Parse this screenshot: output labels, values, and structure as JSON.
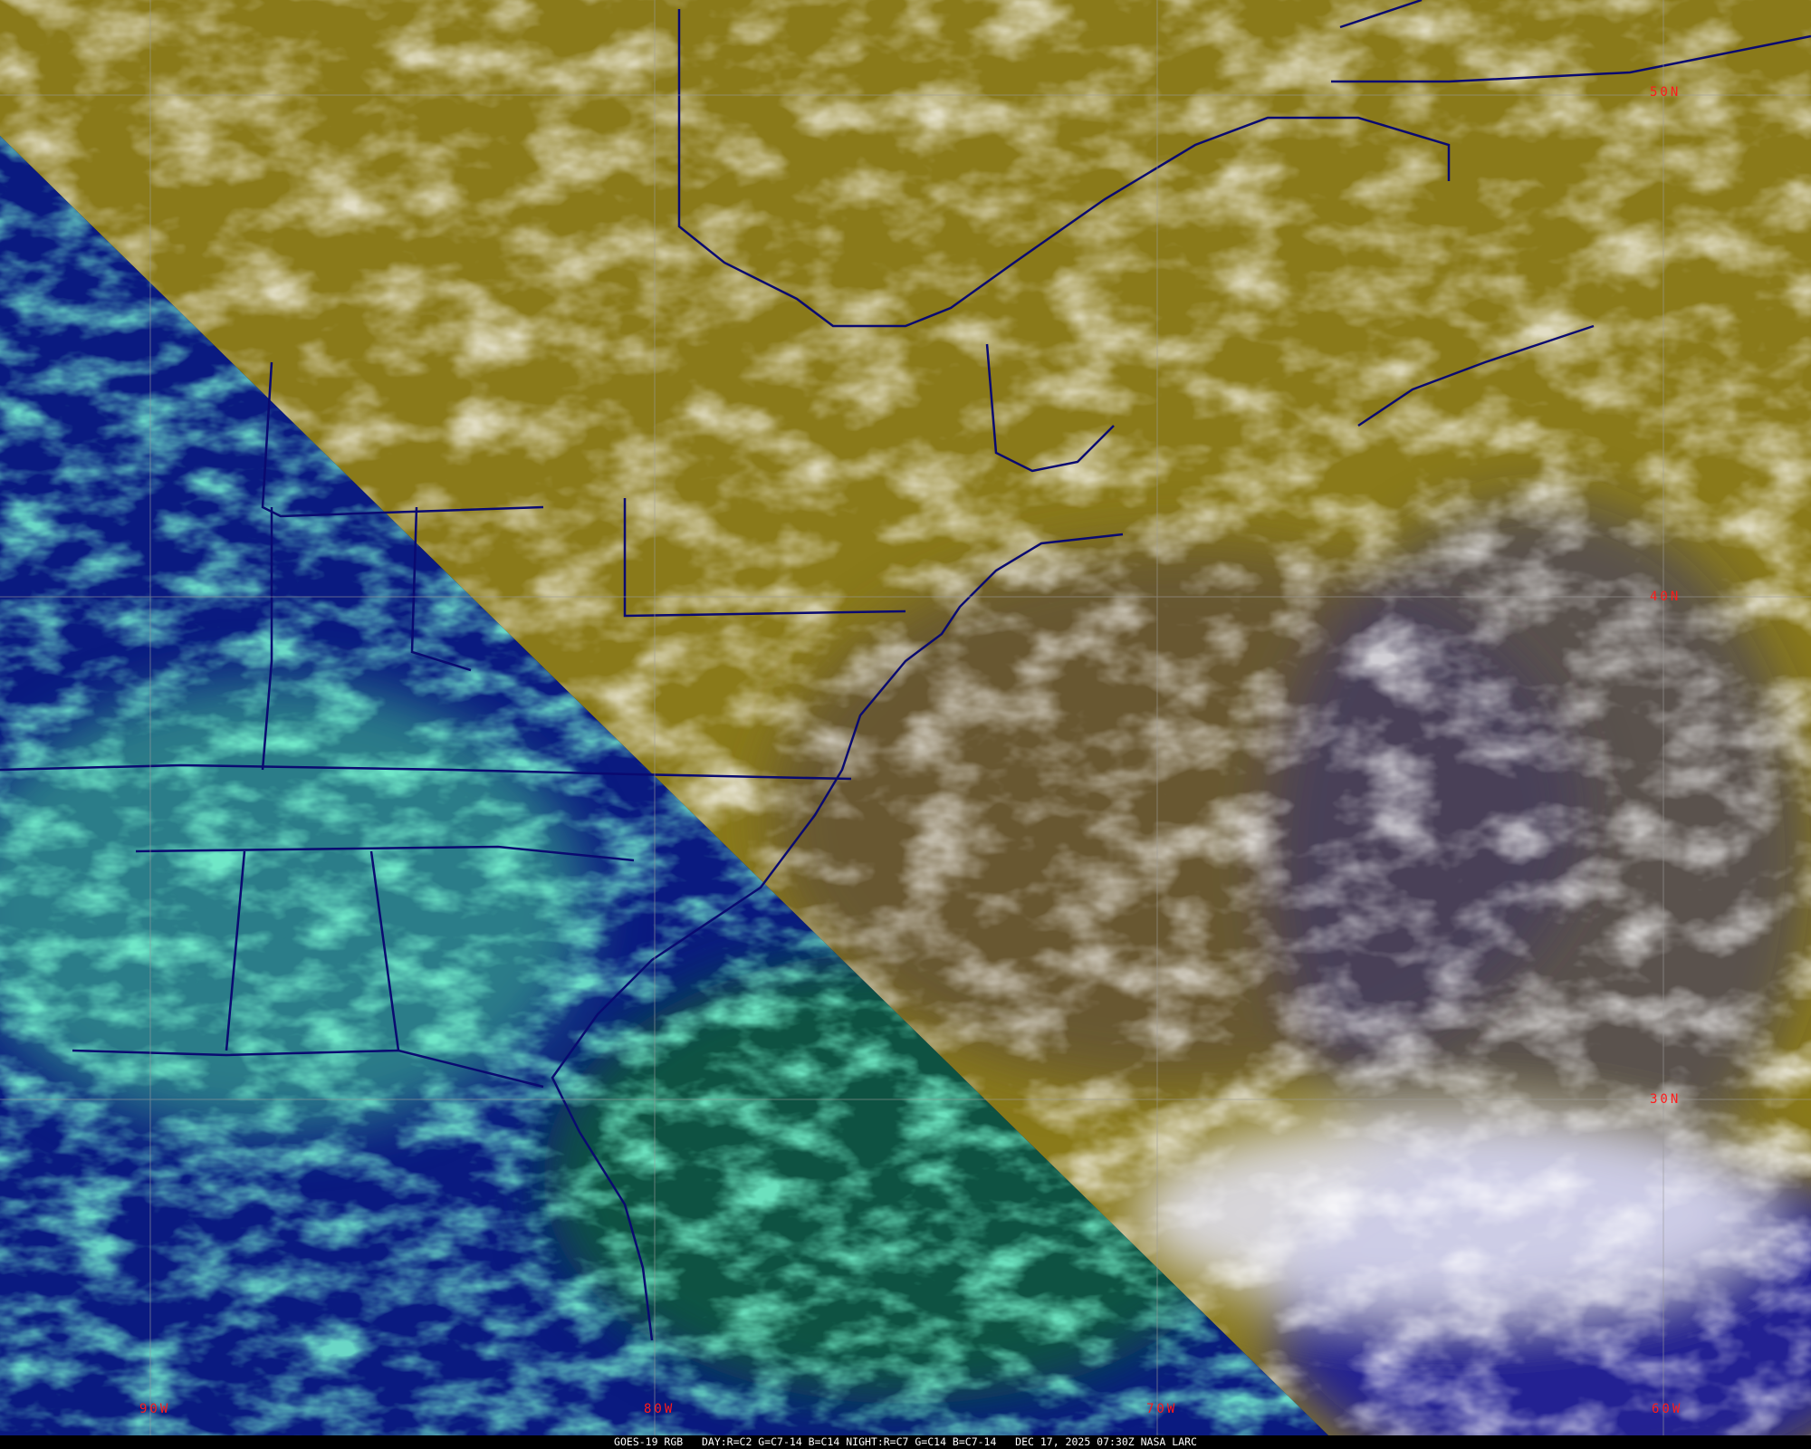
{
  "caption": "GOES-19 RGB   DAY:R=C2 G=C7-14 B=C14 NIGHT:R=C7 G=C14 B=C7-14   DEC 17, 2025 07:30Z NASA LARC",
  "lat_labels": [
    "50N",
    "40N",
    "30N"
  ],
  "lon_labels": [
    "90W",
    "80W",
    "70W",
    "60W"
  ],
  "colors": {
    "day_region": "#8a7a1a",
    "day_cloud": "#dcdcf0",
    "night_region": "#0a1a80",
    "night_cloud": "#30e8a0",
    "borders": "#0a0a70",
    "grid": "#9a9a9a",
    "label": "#ff1a1a"
  }
}
